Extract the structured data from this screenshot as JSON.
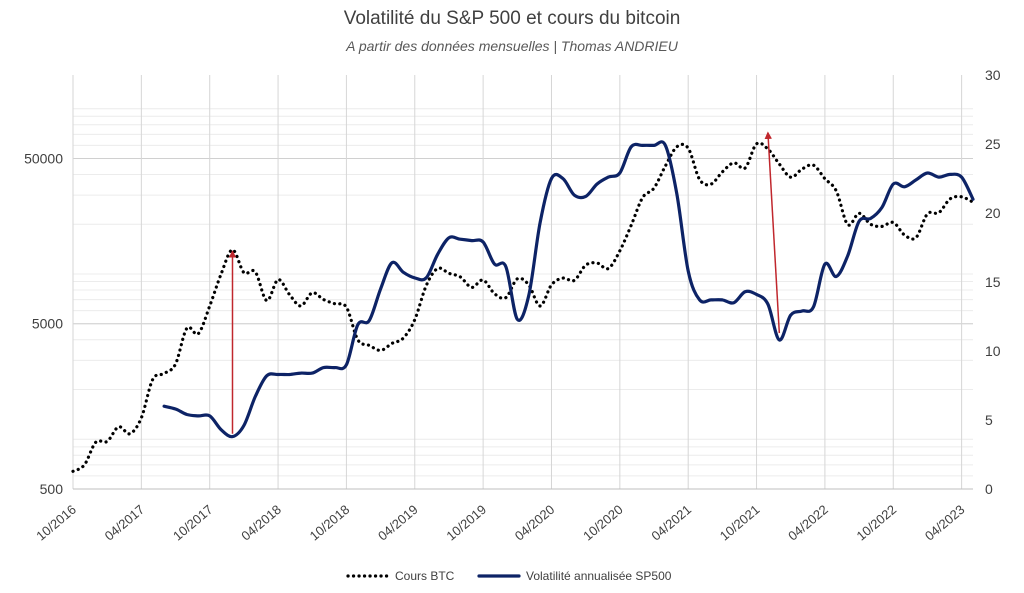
{
  "chart_data": {
    "type": "line",
    "title": "Volatilité du S&P 500 et cours du bitcoin",
    "subtitle": "A partir des données mensuelles | Thomas ANDRIEU",
    "x_start": "10/2016",
    "x_end": "05/2023",
    "x_ticks": [
      "10/2016",
      "04/2017",
      "10/2017",
      "04/2018",
      "10/2018",
      "04/2019",
      "10/2019",
      "04/2020",
      "10/2020",
      "04/2021",
      "10/2021",
      "04/2022",
      "10/2022",
      "04/2023"
    ],
    "y_left": {
      "scale": "log",
      "range": [
        500,
        160000
      ],
      "ticks": [
        "500",
        "5000",
        "50000"
      ]
    },
    "y_right": {
      "scale": "linear",
      "range": [
        0,
        30
      ],
      "ticks": [
        "0",
        "5",
        "10",
        "15",
        "20",
        "25",
        "30"
      ]
    },
    "grid": true,
    "legend_position": "bottom",
    "series": [
      {
        "name": "Cours BTC",
        "axis": "left",
        "style": "dotted",
        "color": "#000000",
        "points": [
          [
            "2016-10",
            640
          ],
          [
            "2016-11",
            700
          ],
          [
            "2016-12",
            960
          ],
          [
            "2017-01",
            970
          ],
          [
            "2017-02",
            1190
          ],
          [
            "2017-03",
            1080
          ],
          [
            "2017-04",
            1350
          ],
          [
            "2017-05",
            2300
          ],
          [
            "2017-06",
            2500
          ],
          [
            "2017-07",
            2850
          ],
          [
            "2017-08",
            4700
          ],
          [
            "2017-09",
            4350
          ],
          [
            "2017-10",
            6400
          ],
          [
            "2017-11",
            10000
          ],
          [
            "2017-12",
            14000
          ],
          [
            "2018-01",
            10200
          ],
          [
            "2018-02",
            10300
          ],
          [
            "2018-03",
            6900
          ],
          [
            "2018-04",
            9250
          ],
          [
            "2018-05",
            7500
          ],
          [
            "2018-06",
            6400
          ],
          [
            "2018-07",
            7700
          ],
          [
            "2018-08",
            7000
          ],
          [
            "2018-09",
            6600
          ],
          [
            "2018-10",
            6300
          ],
          [
            "2018-11",
            4000
          ],
          [
            "2018-12",
            3700
          ],
          [
            "2019-01",
            3450
          ],
          [
            "2019-02",
            3800
          ],
          [
            "2019-03",
            4100
          ],
          [
            "2019-04",
            5300
          ],
          [
            "2019-05",
            8500
          ],
          [
            "2019-06",
            10800
          ],
          [
            "2019-07",
            10100
          ],
          [
            "2019-08",
            9600
          ],
          [
            "2019-09",
            8300
          ],
          [
            "2019-10",
            9200
          ],
          [
            "2019-11",
            7600
          ],
          [
            "2019-12",
            7200
          ],
          [
            "2020-01",
            9350
          ],
          [
            "2020-02",
            8600
          ],
          [
            "2020-03",
            6400
          ],
          [
            "2020-04",
            8600
          ],
          [
            "2020-05",
            9450
          ],
          [
            "2020-06",
            9150
          ],
          [
            "2020-07",
            11300
          ],
          [
            "2020-08",
            11650
          ],
          [
            "2020-09",
            10800
          ],
          [
            "2020-10",
            13800
          ],
          [
            "2020-11",
            19700
          ],
          [
            "2020-12",
            29000
          ],
          [
            "2021-01",
            33100
          ],
          [
            "2021-02",
            45100
          ],
          [
            "2021-03",
            58800
          ],
          [
            "2021-04",
            57700
          ],
          [
            "2021-05",
            37300
          ],
          [
            "2021-06",
            35000
          ],
          [
            "2021-07",
            41500
          ],
          [
            "2021-08",
            47100
          ],
          [
            "2021-09",
            43800
          ],
          [
            "2021-10",
            61300
          ],
          [
            "2021-11",
            57000
          ],
          [
            "2021-12",
            46300
          ],
          [
            "2022-01",
            38500
          ],
          [
            "2022-02",
            43200
          ],
          [
            "2022-03",
            45500
          ],
          [
            "2022-04",
            37700
          ],
          [
            "2022-05",
            31800
          ],
          [
            "2022-06",
            19900
          ],
          [
            "2022-07",
            23300
          ],
          [
            "2022-08",
            20000
          ],
          [
            "2022-09",
            19400
          ],
          [
            "2022-10",
            20500
          ],
          [
            "2022-11",
            17200
          ],
          [
            "2022-12",
            16600
          ],
          [
            "2023-01",
            23100
          ],
          [
            "2023-02",
            23500
          ],
          [
            "2023-03",
            28500
          ],
          [
            "2023-04",
            29300
          ],
          [
            "2023-05",
            27200
          ]
        ]
      },
      {
        "name": "Volatilité annualisée SP500",
        "axis": "right",
        "style": "solid",
        "color": "#0d2366",
        "points": [
          [
            "2017-06",
            6.0
          ],
          [
            "2017-07",
            5.8
          ],
          [
            "2017-08",
            5.4
          ],
          [
            "2017-09",
            5.3
          ],
          [
            "2017-10",
            5.3
          ],
          [
            "2017-11",
            4.3
          ],
          [
            "2017-12",
            3.8
          ],
          [
            "2018-01",
            4.6
          ],
          [
            "2018-02",
            6.7
          ],
          [
            "2018-03",
            8.2
          ],
          [
            "2018-04",
            8.3
          ],
          [
            "2018-05",
            8.3
          ],
          [
            "2018-06",
            8.4
          ],
          [
            "2018-07",
            8.4
          ],
          [
            "2018-08",
            8.8
          ],
          [
            "2018-09",
            8.8
          ],
          [
            "2018-10",
            9.0
          ],
          [
            "2018-11",
            11.9
          ],
          [
            "2018-12",
            12.2
          ],
          [
            "2019-01",
            14.5
          ],
          [
            "2019-02",
            16.4
          ],
          [
            "2019-03",
            15.7
          ],
          [
            "2019-04",
            15.3
          ],
          [
            "2019-05",
            15.3
          ],
          [
            "2019-06",
            17.0
          ],
          [
            "2019-07",
            18.2
          ],
          [
            "2019-08",
            18.1
          ],
          [
            "2019-09",
            18.0
          ],
          [
            "2019-10",
            17.9
          ],
          [
            "2019-11",
            16.3
          ],
          [
            "2019-12",
            16.1
          ],
          [
            "2020-01",
            12.3
          ],
          [
            "2020-02",
            14.0
          ],
          [
            "2020-03",
            19.3
          ],
          [
            "2020-04",
            22.5
          ],
          [
            "2020-05",
            22.5
          ],
          [
            "2020-06",
            21.3
          ],
          [
            "2020-07",
            21.2
          ],
          [
            "2020-08",
            22.1
          ],
          [
            "2020-09",
            22.6
          ],
          [
            "2020-10",
            22.9
          ],
          [
            "2020-11",
            24.8
          ],
          [
            "2020-12",
            24.9
          ],
          [
            "2021-01",
            24.9
          ],
          [
            "2021-02",
            24.9
          ],
          [
            "2021-03",
            21.4
          ],
          [
            "2021-04",
            15.8
          ],
          [
            "2021-05",
            13.7
          ],
          [
            "2021-06",
            13.7
          ],
          [
            "2021-07",
            13.7
          ],
          [
            "2021-08",
            13.5
          ],
          [
            "2021-09",
            14.3
          ],
          [
            "2021-10",
            14.1
          ],
          [
            "2021-11",
            13.4
          ],
          [
            "2021-12",
            10.8
          ],
          [
            "2022-01",
            12.6
          ],
          [
            "2022-02",
            12.9
          ],
          [
            "2022-03",
            13.2
          ],
          [
            "2022-04",
            16.3
          ],
          [
            "2022-05",
            15.4
          ],
          [
            "2022-06",
            16.9
          ],
          [
            "2022-07",
            19.4
          ],
          [
            "2022-08",
            19.6
          ],
          [
            "2022-09",
            20.4
          ],
          [
            "2022-10",
            22.1
          ],
          [
            "2022-11",
            21.9
          ],
          [
            "2022-12",
            22.4
          ],
          [
            "2023-01",
            22.9
          ],
          [
            "2023-02",
            22.6
          ],
          [
            "2023-03",
            22.8
          ],
          [
            "2023-04",
            22.6
          ],
          [
            "2023-05",
            21.0
          ]
        ]
      }
    ],
    "annotations": [
      {
        "type": "arrow",
        "axis": "right",
        "color": "#c0272d",
        "from": [
          "2017-12",
          4.0
        ],
        "to": [
          "2017-12",
          17.2
        ]
      },
      {
        "type": "arrow",
        "axis": "right",
        "color": "#c0272d",
        "from": [
          "2021-12",
          11.3
        ],
        "to": [
          "2021-11",
          25.8
        ]
      }
    ]
  }
}
